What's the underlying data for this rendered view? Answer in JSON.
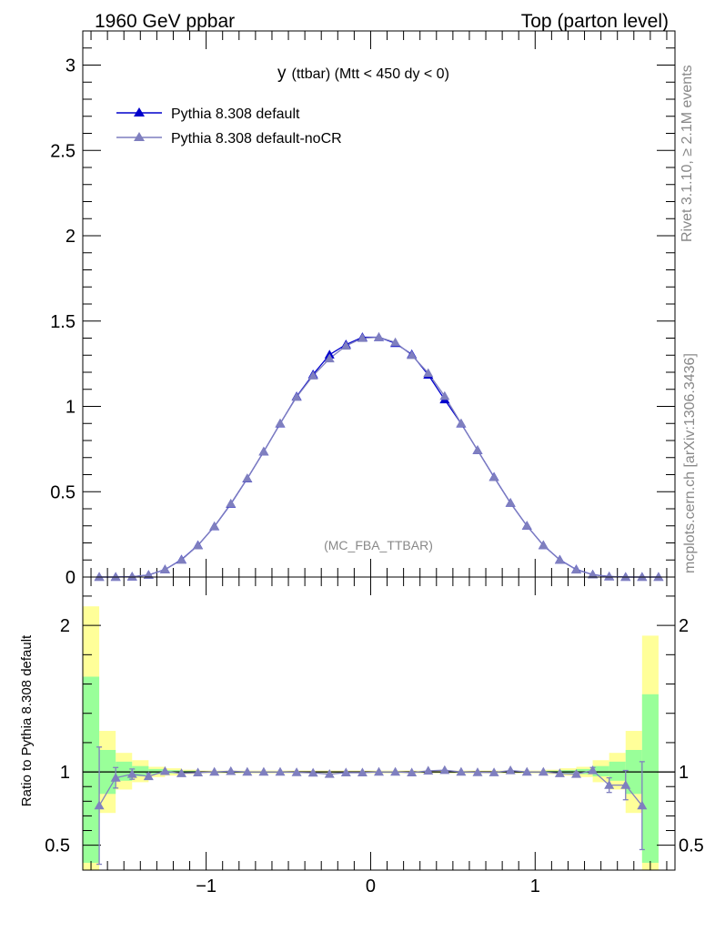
{
  "header": {
    "left_title": "1960 GeV ppbar",
    "right_title": "Top (parton level)"
  },
  "side_labels": {
    "rivet": "Rivet 3.1.10, ≥ 2.1M events",
    "mcplots": "mcplots.cern.ch [arXiv:1306.3436]"
  },
  "colors": {
    "default": "#0000cc",
    "nocr": "#7f7fbf",
    "band_green": "#99ff99",
    "band_yellow": "#ffff99"
  },
  "chart_data": [
    {
      "type": "line",
      "plot_title_main": "y",
      "plot_title_rest": "(ttbar) (Mtt < 450 dy < 0)",
      "watermark": "(MC_FBA_TTBAR)",
      "xlim": [
        -1.75,
        1.85
      ],
      "ylim": [
        0,
        3.2
      ],
      "yticks": [
        0,
        0.5,
        1,
        1.5,
        2,
        2.5,
        3
      ],
      "ytick_labels": [
        "0",
        "0.5",
        "1",
        "1.5",
        "2",
        "2.5",
        "3"
      ],
      "legend_position": "top-left",
      "x": [
        -1.65,
        -1.55,
        -1.45,
        -1.35,
        -1.25,
        -1.15,
        -1.05,
        -0.95,
        -0.85,
        -0.75,
        -0.65,
        -0.55,
        -0.45,
        -0.35,
        -0.25,
        -0.15,
        -0.05,
        0.05,
        0.15,
        0.25,
        0.35,
        0.45,
        0.55,
        0.65,
        0.75,
        0.85,
        0.95,
        1.05,
        1.15,
        1.25,
        1.35,
        1.45,
        1.55,
        1.65,
        1.75
      ],
      "series": [
        {
          "name": "Pythia 8.308 default",
          "values": [
            0.0,
            0.0,
            0.002,
            0.012,
            0.044,
            0.102,
            0.186,
            0.296,
            0.428,
            0.577,
            0.735,
            0.899,
            1.058,
            1.187,
            1.303,
            1.362,
            1.405,
            1.405,
            1.37,
            1.305,
            1.185,
            1.04,
            0.899,
            0.743,
            0.586,
            0.434,
            0.3,
            0.186,
            0.101,
            0.044,
            0.014,
            0.003,
            0.0,
            0.0,
            0.0
          ]
        },
        {
          "name": "Pythia 8.308 default-noCR",
          "values": [
            0.0,
            0.0,
            0.002,
            0.012,
            0.044,
            0.1,
            0.185,
            0.297,
            0.43,
            0.578,
            0.735,
            0.9,
            1.055,
            1.18,
            1.28,
            1.355,
            1.4,
            1.405,
            1.375,
            1.3,
            1.195,
            1.06,
            0.9,
            0.743,
            0.585,
            0.434,
            0.3,
            0.186,
            0.1,
            0.043,
            0.014,
            0.003,
            0.0,
            0.0,
            0.0
          ]
        }
      ]
    },
    {
      "type": "line",
      "ylabel": "Ratio to Pythia 8.308 default",
      "xlim": [
        -1.75,
        1.85
      ],
      "ylim": [
        0.33,
        2.33
      ],
      "yticks": [
        0.5,
        1,
        2
      ],
      "ytick_labels": [
        "0.5",
        "1",
        "2"
      ],
      "xticks": [
        -1,
        0,
        1
      ],
      "xtick_labels": [
        "−1",
        "0",
        "1"
      ],
      "bands": [
        {
          "x0": -1.75,
          "x1": -1.65,
          "g": [
            0.38,
            1.65
          ],
          "y": [
            0.33,
            2.13
          ]
        },
        {
          "x0": -1.65,
          "x1": -1.55,
          "g": [
            0.85,
            1.15
          ],
          "y": [
            0.72,
            1.28
          ]
        },
        {
          "x0": -1.55,
          "x1": -1.45,
          "g": [
            0.94,
            1.07
          ],
          "y": [
            0.88,
            1.13
          ]
        },
        {
          "x0": -1.45,
          "x1": -1.35,
          "g": [
            0.97,
            1.04
          ],
          "y": [
            0.93,
            1.08
          ]
        },
        {
          "x0": -1.35,
          "x1": -1.25,
          "g": [
            0.985,
            1.02
          ],
          "y": [
            0.965,
            1.035
          ]
        },
        {
          "x0": -1.25,
          "x1": -1.15,
          "g": [
            0.99,
            1.012
          ],
          "y": [
            0.975,
            1.025
          ]
        },
        {
          "x0": -1.15,
          "x1": -1.05,
          "g": [
            0.993,
            1.008
          ],
          "y": [
            0.985,
            1.015
          ]
        },
        {
          "x0": -1.05,
          "x1": 1.05,
          "g": [
            0.996,
            1.004
          ],
          "y": [
            0.991,
            1.009
          ]
        },
        {
          "x0": 1.05,
          "x1": 1.15,
          "g": [
            0.993,
            1.008
          ],
          "y": [
            0.985,
            1.015
          ]
        },
        {
          "x0": 1.15,
          "x1": 1.25,
          "g": [
            0.99,
            1.012
          ],
          "y": [
            0.975,
            1.025
          ]
        },
        {
          "x0": 1.25,
          "x1": 1.35,
          "g": [
            0.985,
            1.02
          ],
          "y": [
            0.965,
            1.035
          ]
        },
        {
          "x0": 1.35,
          "x1": 1.45,
          "g": [
            0.97,
            1.04
          ],
          "y": [
            0.93,
            1.08
          ]
        },
        {
          "x0": 1.45,
          "x1": 1.55,
          "g": [
            0.94,
            1.07
          ],
          "y": [
            0.88,
            1.13
          ]
        },
        {
          "x0": 1.55,
          "x1": 1.65,
          "g": [
            0.85,
            1.15
          ],
          "y": [
            0.72,
            1.28
          ]
        },
        {
          "x0": 1.65,
          "x1": 1.75,
          "g": [
            0.38,
            1.53
          ],
          "y": [
            0.33,
            1.93
          ]
        }
      ],
      "ratio_points": [
        {
          "x": -1.65,
          "y": 0.77,
          "err": 0.4
        },
        {
          "x": -1.55,
          "y": 0.96,
          "err": 0.07
        },
        {
          "x": -1.45,
          "y": 0.985,
          "err": 0.035
        },
        {
          "x": -1.35,
          "y": 0.97,
          "err": 0.02
        },
        {
          "x": -1.25,
          "y": 1.005,
          "err": 0.0
        },
        {
          "x": -1.15,
          "y": 0.99,
          "err": 0.0
        },
        {
          "x": -1.05,
          "y": 0.995,
          "err": 0.0
        },
        {
          "x": -0.95,
          "y": 1.0,
          "err": 0.0
        },
        {
          "x": -0.85,
          "y": 1.005,
          "err": 0.0
        },
        {
          "x": -0.75,
          "y": 1.0,
          "err": 0.0
        },
        {
          "x": -0.65,
          "y": 1.0,
          "err": 0.0
        },
        {
          "x": -0.55,
          "y": 1.0,
          "err": 0.0
        },
        {
          "x": -0.45,
          "y": 0.997,
          "err": 0.0
        },
        {
          "x": -0.35,
          "y": 0.994,
          "err": 0.0
        },
        {
          "x": -0.25,
          "y": 0.985,
          "err": 0.0
        },
        {
          "x": -0.15,
          "y": 0.995,
          "err": 0.0
        },
        {
          "x": -0.05,
          "y": 0.995,
          "err": 0.0
        },
        {
          "x": 0.05,
          "y": 1.0,
          "err": 0.0
        },
        {
          "x": 0.15,
          "y": 1.0,
          "err": 0.0
        },
        {
          "x": 0.25,
          "y": 0.995,
          "err": 0.0
        },
        {
          "x": 0.35,
          "y": 1.008,
          "err": 0.0
        },
        {
          "x": 0.45,
          "y": 1.012,
          "err": 0.0
        },
        {
          "x": 0.55,
          "y": 1.0,
          "err": 0.0
        },
        {
          "x": 0.65,
          "y": 0.997,
          "err": 0.0
        },
        {
          "x": 0.75,
          "y": 0.996,
          "err": 0.0
        },
        {
          "x": 0.85,
          "y": 1.01,
          "err": 0.0
        },
        {
          "x": 0.95,
          "y": 1.0,
          "err": 0.0
        },
        {
          "x": 1.05,
          "y": 1.0,
          "err": 0.0
        },
        {
          "x": 1.15,
          "y": 0.99,
          "err": 0.0
        },
        {
          "x": 1.25,
          "y": 0.985,
          "err": 0.012
        },
        {
          "x": 1.35,
          "y": 1.01,
          "err": 0.02
        },
        {
          "x": 1.45,
          "y": 0.91,
          "err": 0.05
        },
        {
          "x": 1.55,
          "y": 0.91,
          "err": 0.1
        },
        {
          "x": 1.65,
          "y": 0.77,
          "err": 0.3
        }
      ]
    }
  ]
}
